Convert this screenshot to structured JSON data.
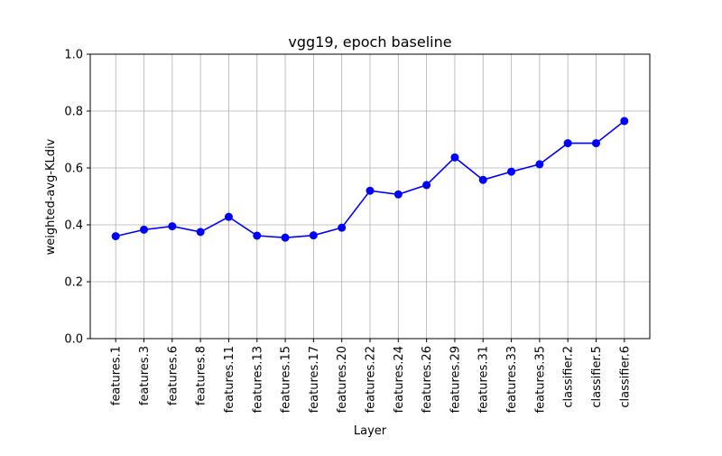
{
  "chart_data": {
    "type": "line",
    "title": "vgg19, epoch baseline",
    "xlabel": "Layer",
    "ylabel": "weighted-avg-KLdiv",
    "ylim": [
      0.0,
      1.0
    ],
    "yticks": [
      "0.0",
      "0.2",
      "0.4",
      "0.6",
      "0.8",
      "1.0"
    ],
    "grid": true,
    "categories": [
      "features.1",
      "features.3",
      "features.6",
      "features.8",
      "features.11",
      "features.13",
      "features.15",
      "features.17",
      "features.20",
      "features.22",
      "features.24",
      "features.26",
      "features.29",
      "features.31",
      "features.33",
      "features.35",
      "classifier.2",
      "classifier.5",
      "classifier.6"
    ],
    "series": [
      {
        "color": "#0000ff",
        "marker": "circle",
        "values": [
          0.36,
          0.383,
          0.395,
          0.375,
          0.428,
          0.362,
          0.355,
          0.363,
          0.39,
          0.52,
          0.507,
          0.54,
          0.637,
          0.558,
          0.587,
          0.613,
          0.687,
          0.687,
          0.765
        ]
      }
    ]
  }
}
